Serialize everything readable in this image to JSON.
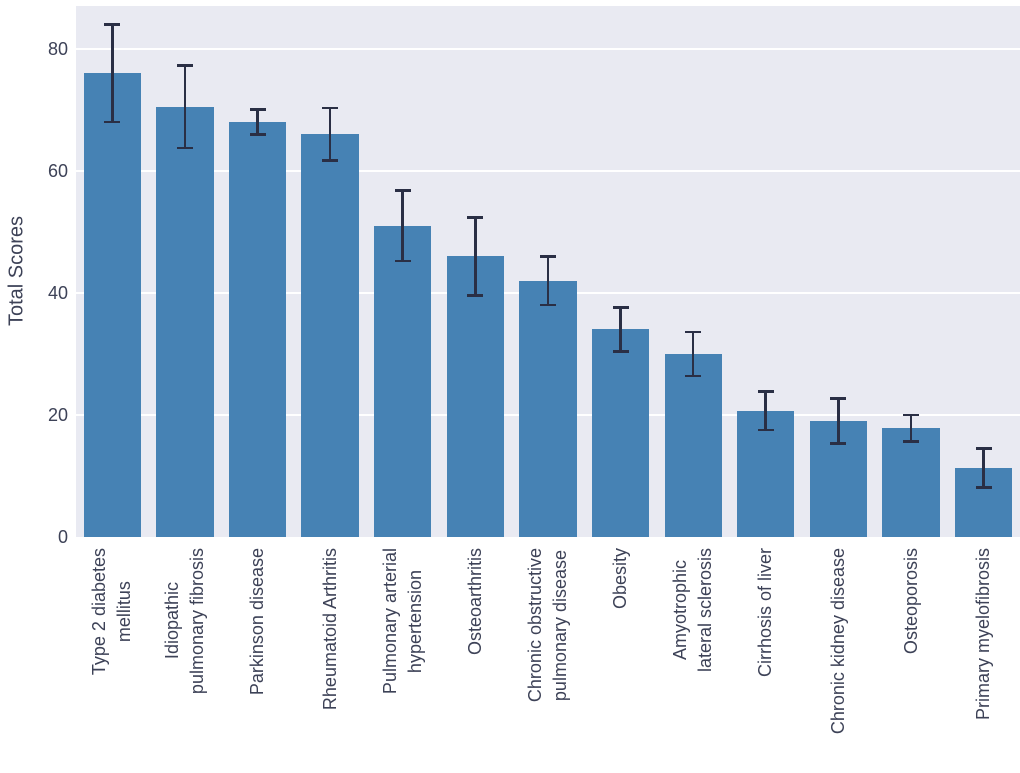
{
  "chart_data": {
    "type": "bar",
    "title": "",
    "xlabel": "",
    "ylabel": "Total Scores",
    "ylim": [
      0,
      87
    ],
    "yticks": [
      0,
      20,
      40,
      60,
      80
    ],
    "grid": true,
    "legend": null,
    "categories": [
      "Type 2 diabetes\nmellitus",
      "Idiopathic\npulmonary fibrosis",
      "Parkinson disease",
      "Rheumatoid Arthritis",
      "Pulmonary arterial\nhypertension",
      "Osteoarthritis",
      "Chronic obstructive\npulmonary disease",
      "Obesity",
      "Amyotrophic\nlateral sclerosis",
      "Cirrhosis of liver",
      "Chronic kidney disease",
      "Osteoporosis",
      "Primary myelofibrosis"
    ],
    "values": [
      76,
      70.5,
      68,
      66,
      51,
      46,
      42,
      34,
      30,
      20.7,
      19,
      17.8,
      11.3
    ],
    "errors": [
      8.2,
      7,
      2.3,
      4.5,
      6,
      6.6,
      4.2,
      3.8,
      3.8,
      3.4,
      3.9,
      2.4,
      3.4
    ],
    "colors": {
      "bar": "#4682B4",
      "error": "#2A2F45",
      "plot_bg": "#E9EAF2",
      "grid": "#FFFFFF",
      "text": "#3D4257"
    }
  }
}
